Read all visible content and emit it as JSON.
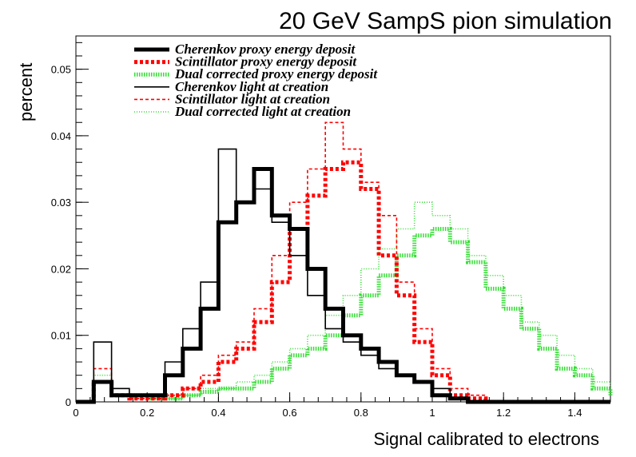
{
  "chart_data": {
    "type": "line",
    "title": "20 GeV SampS pion simulation",
    "xlabel": "Signal calibrated to electrons",
    "ylabel": "percent",
    "xlim": [
      0,
      1.5
    ],
    "ylim": [
      0,
      0.055
    ],
    "x_ticks": [
      0,
      0.2,
      0.4,
      0.6,
      0.8,
      1,
      1.2,
      1.4
    ],
    "x_tick_labels": [
      "0",
      "0.2",
      "0.4",
      "0.6",
      "0.8",
      "1",
      "1.2",
      "1.4"
    ],
    "y_ticks": [
      0,
      0.01,
      0.02,
      0.03,
      0.04,
      0.05
    ],
    "y_tick_labels": [
      "0",
      "0.01",
      "0.02",
      "0.03",
      "0.04",
      "0.05"
    ],
    "legend_position": "top-left",
    "x": [
      0.0,
      0.05,
      0.1,
      0.15,
      0.2,
      0.25,
      0.3,
      0.35,
      0.4,
      0.45,
      0.5,
      0.55,
      0.6,
      0.65,
      0.7,
      0.75,
      0.8,
      0.85,
      0.9,
      0.95,
      1.0,
      1.05,
      1.1,
      1.15,
      1.2,
      1.25,
      1.3,
      1.35,
      1.4,
      1.45,
      1.5
    ],
    "series": [
      {
        "name": "Cherenkov proxy energy deposit",
        "color": "#000000",
        "style": "thick-solid",
        "values": [
          0,
          0.003,
          0.001,
          0.001,
          0.001,
          0.004,
          0.008,
          0.014,
          0.027,
          0.03,
          0.035,
          0.028,
          0.026,
          0.02,
          0.014,
          0.01,
          0.008,
          0.006,
          0.004,
          0.003,
          0.001,
          0.0005,
          0,
          0,
          0,
          0,
          0,
          0,
          0,
          0,
          0
        ]
      },
      {
        "name": "Scintillator proxy energy deposit",
        "color": "#ff0000",
        "style": "thick-dashed",
        "values": [
          0,
          0.003,
          0.001,
          0.0005,
          0.0005,
          0.001,
          0.002,
          0.003,
          0.006,
          0.008,
          0.012,
          0.018,
          0.026,
          0.031,
          0.035,
          0.036,
          0.032,
          0.022,
          0.016,
          0.009,
          0.004,
          0.001,
          0.0005,
          0,
          0,
          0,
          0,
          0,
          0,
          0,
          0
        ]
      },
      {
        "name": "Dual corrected proxy energy deposit",
        "color": "#33dd33",
        "style": "thick-dotted",
        "values": [
          0,
          0.003,
          0.001,
          0.001,
          0.0005,
          0.0005,
          0.001,
          0.0015,
          0.002,
          0.002,
          0.003,
          0.005,
          0.007,
          0.008,
          0.01,
          0.013,
          0.016,
          0.019,
          0.022,
          0.025,
          0.026,
          0.024,
          0.021,
          0.017,
          0.014,
          0.011,
          0.008,
          0.005,
          0.004,
          0.002,
          0.001
        ]
      },
      {
        "name": "Cherenkov light at creation",
        "color": "#000000",
        "style": "thin-solid",
        "values": [
          0,
          0.009,
          0.002,
          0.001,
          0.001,
          0.006,
          0.011,
          0.018,
          0.038,
          0.03,
          0.032,
          0.027,
          0.022,
          0.016,
          0.011,
          0.009,
          0.007,
          0.005,
          0.004,
          0.003,
          0.002,
          0.0005,
          0,
          0,
          0,
          0,
          0,
          0,
          0,
          0,
          0
        ]
      },
      {
        "name": "Scintillator light at creation",
        "color": "#ff0000",
        "style": "thin-dashed",
        "values": [
          0,
          0.005,
          0.001,
          0.0005,
          0.0005,
          0.001,
          0.002,
          0.004,
          0.007,
          0.009,
          0.014,
          0.022,
          0.03,
          0.035,
          0.042,
          0.038,
          0.033,
          0.028,
          0.018,
          0.011,
          0.005,
          0.002,
          0.001,
          0,
          0,
          0,
          0,
          0,
          0,
          0,
          0
        ]
      },
      {
        "name": "Dual corrected light at creation",
        "color": "#33dd33",
        "style": "thin-dotted",
        "values": [
          0,
          0.004,
          0.001,
          0.0005,
          0.0005,
          0.0005,
          0.001,
          0.002,
          0.002,
          0.003,
          0.004,
          0.006,
          0.008,
          0.01,
          0.013,
          0.016,
          0.02,
          0.023,
          0.026,
          0.03,
          0.028,
          0.026,
          0.022,
          0.019,
          0.016,
          0.012,
          0.01,
          0.007,
          0.005,
          0.003,
          0.002
        ]
      }
    ]
  }
}
